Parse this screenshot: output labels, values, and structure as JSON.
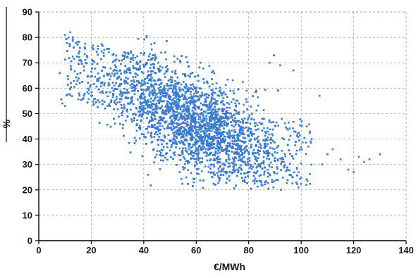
{
  "chart_data": {
    "type": "scatter",
    "title": "",
    "xlabel": "€/MWh",
    "ylabel": "%",
    "xlim": [
      0,
      140
    ],
    "ylim": [
      0,
      90
    ],
    "xticks": [
      0,
      20,
      40,
      60,
      80,
      100,
      120,
      140
    ],
    "yticks": [
      0,
      10,
      20,
      30,
      40,
      50,
      60,
      70,
      80,
      90
    ],
    "grid": true,
    "legend": "none",
    "marker_color": "#3a7cd0",
    "n_points_approx": 5000,
    "cloud": {
      "center_x": 60,
      "center_y": 46,
      "x_min_approx": 8,
      "x_max_approx": 130,
      "y_min_approx": 20,
      "y_max_approx": 82,
      "trend": "negative"
    },
    "outliers": [
      {
        "x": 10,
        "y": 81
      },
      {
        "x": 12,
        "y": 82
      },
      {
        "x": 13,
        "y": 80
      },
      {
        "x": 8,
        "y": 66
      },
      {
        "x": 9,
        "y": 54
      },
      {
        "x": 10,
        "y": 53
      },
      {
        "x": 88,
        "y": 70
      },
      {
        "x": 92,
        "y": 69
      },
      {
        "x": 97,
        "y": 67
      },
      {
        "x": 107,
        "y": 57
      },
      {
        "x": 104,
        "y": 40
      },
      {
        "x": 110,
        "y": 34
      },
      {
        "x": 112,
        "y": 36
      },
      {
        "x": 115,
        "y": 32
      },
      {
        "x": 118,
        "y": 28
      },
      {
        "x": 120,
        "y": 27
      },
      {
        "x": 122,
        "y": 33
      },
      {
        "x": 124,
        "y": 31
      },
      {
        "x": 126,
        "y": 32
      },
      {
        "x": 130,
        "y": 34
      },
      {
        "x": 99,
        "y": 21
      },
      {
        "x": 102,
        "y": 22
      },
      {
        "x": 108,
        "y": 30
      }
    ]
  }
}
